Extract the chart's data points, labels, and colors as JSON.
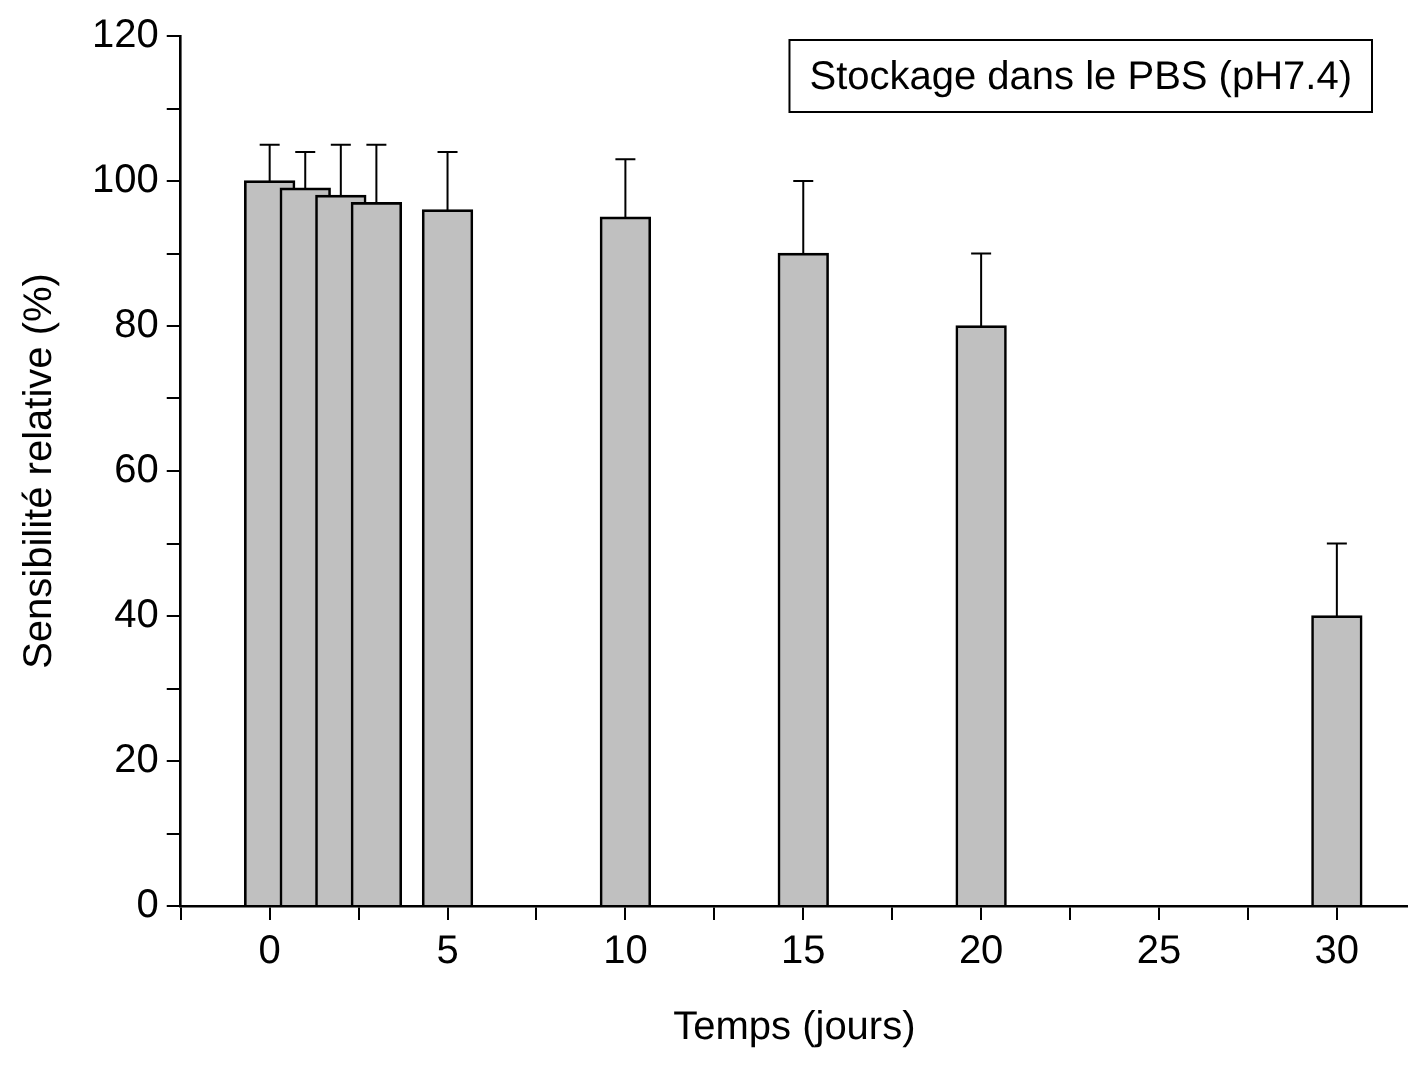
{
  "chart_data": {
    "type": "bar",
    "title": "Stockage dans le PBS (pH7.4)",
    "xlabel": "Temps (jours)",
    "ylabel": "Sensibilité relative (%)",
    "x": [
      0,
      1,
      2,
      3,
      5,
      10,
      15,
      20,
      30
    ],
    "values": [
      100,
      99,
      98,
      97,
      96,
      95,
      90,
      80,
      40
    ],
    "errors": [
      [
        100,
        105
      ],
      [
        99,
        104
      ],
      [
        98,
        105
      ],
      [
        97,
        105
      ],
      [
        96,
        104
      ],
      [
        95,
        103
      ],
      [
        90,
        100
      ],
      [
        80,
        90
      ],
      [
        40,
        50
      ]
    ],
    "color": "#c0c0c0",
    "xlim": [
      -2.5,
      32
    ],
    "xticks": [
      {
        "value": -2.5,
        "label": null
      },
      0,
      {
        "value": 2.5,
        "label": null
      },
      5,
      {
        "value": 7.5,
        "label": null
      },
      10,
      {
        "value": 12.5,
        "label": null
      },
      15,
      {
        "value": 17.5,
        "label": null
      },
      20,
      {
        "value": 22.5,
        "label": null
      },
      25,
      {
        "value": 27.5,
        "label": null
      },
      30
    ],
    "ylim": [
      0,
      120
    ],
    "yticks": [
      0,
      {
        "value": 10,
        "label": null
      },
      20,
      {
        "value": 30,
        "label": null
      },
      40,
      {
        "value": 50,
        "label": null
      },
      60,
      {
        "value": 70,
        "label": null
      },
      80,
      {
        "value": 90,
        "label": null
      },
      100,
      {
        "value": 110,
        "label": null
      },
      120
    ],
    "grid": false,
    "legend": false
  }
}
